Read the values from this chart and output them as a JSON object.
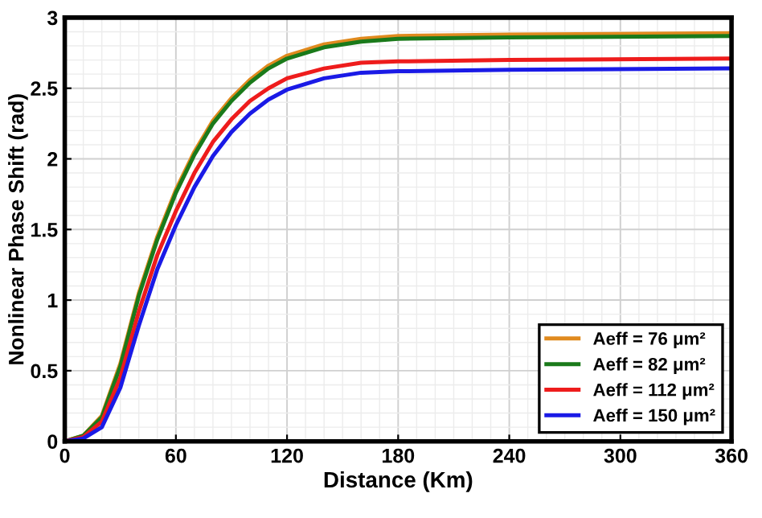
{
  "chart_data": {
    "type": "line",
    "xlabel": "Distance (Km)",
    "ylabel": "Nonlinear Phase Shift (rad)",
    "x": [
      0,
      10,
      20,
      30,
      40,
      50,
      60,
      70,
      80,
      90,
      100,
      110,
      120,
      140,
      160,
      180,
      240,
      360
    ],
    "series": [
      {
        "name": "Aeff = 76 μm²",
        "color": "#e08a1e",
        "values": [
          0,
          0.04,
          0.18,
          0.55,
          1.05,
          1.45,
          1.78,
          2.05,
          2.27,
          2.43,
          2.56,
          2.66,
          2.73,
          2.81,
          2.85,
          2.87,
          2.88,
          2.89
        ]
      },
      {
        "name": "Aeff = 82 μm²",
        "color": "#1a7a1a",
        "values": [
          0,
          0.04,
          0.17,
          0.53,
          1.03,
          1.43,
          1.76,
          2.03,
          2.25,
          2.41,
          2.54,
          2.64,
          2.71,
          2.79,
          2.83,
          2.85,
          2.86,
          2.87
        ]
      },
      {
        "name": "Aeff = 112 μm²",
        "color": "#ee1c1c",
        "values": [
          0,
          0.03,
          0.14,
          0.45,
          0.92,
          1.32,
          1.63,
          1.9,
          2.12,
          2.28,
          2.41,
          2.5,
          2.57,
          2.64,
          2.68,
          2.69,
          2.7,
          2.71
        ]
      },
      {
        "name": "Aeff = 150 μm²",
        "color": "#1a1ae6",
        "values": [
          0,
          0.02,
          0.1,
          0.38,
          0.82,
          1.22,
          1.53,
          1.8,
          2.02,
          2.19,
          2.32,
          2.42,
          2.49,
          2.57,
          2.61,
          2.62,
          2.63,
          2.64
        ]
      }
    ],
    "xlim": [
      0,
      360
    ],
    "xticks": [
      0,
      60,
      120,
      180,
      240,
      300,
      360
    ],
    "ylim": [
      0,
      3
    ],
    "yticks": [
      0,
      0.5,
      1,
      1.5,
      2,
      2.5,
      3
    ],
    "grid": true,
    "legend": "bottom right",
    "marker": "none",
    "line_style": "solid"
  }
}
